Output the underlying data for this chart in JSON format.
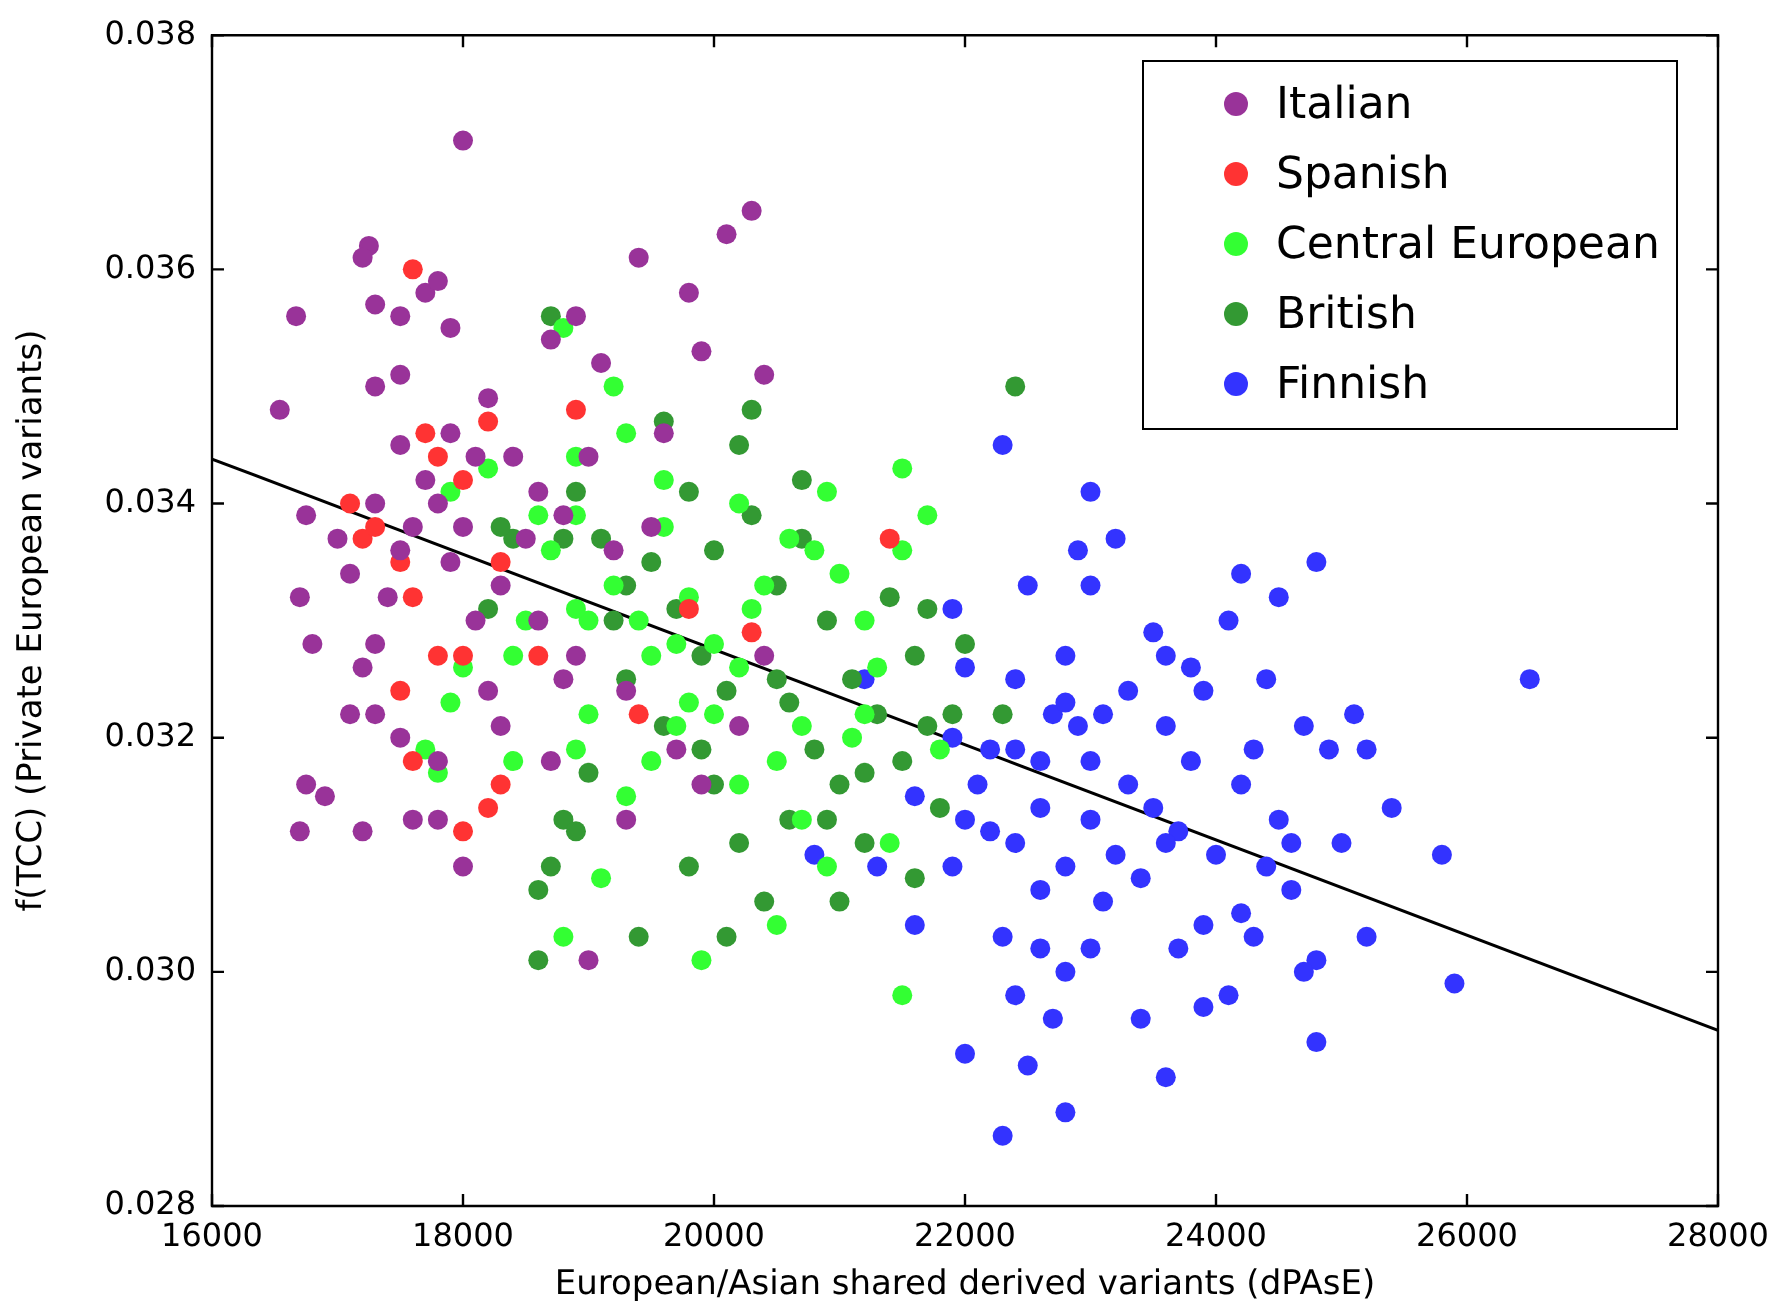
{
  "chart_data": {
    "type": "scatter",
    "xlabel": "European/Asian shared derived variants (dPAsE)",
    "ylabel": "f(TCC) (Private European variants)",
    "xlim": [
      16000,
      28000
    ],
    "xticks": [
      16000,
      18000,
      20000,
      22000,
      24000,
      26000,
      28000
    ],
    "ylim": [
      0.028,
      0.038
    ],
    "yticks": [
      0.028,
      {
        "value": 0.03,
        "label": "0.030"
      },
      0.032,
      0.034,
      0.036,
      0.038
    ],
    "legend": "top right",
    "marker": "circle",
    "series": [
      {
        "name": "Italian",
        "color": "#993399",
        "x": [
          16670,
          16540,
          16750,
          16700,
          16800,
          16750,
          16700,
          16900,
          17000,
          17100,
          17100,
          17250,
          17200,
          17300,
          17500,
          17300,
          17500,
          17700,
          17900,
          17800,
          18000,
          17500,
          17700,
          17800,
          18000,
          17900,
          17600,
          17300,
          17500,
          17400,
          17300,
          17200,
          17300,
          17500,
          17800,
          17600,
          17800,
          18000,
          17200,
          18200,
          18100,
          18300,
          18500,
          18600,
          18400,
          18200,
          18700,
          18900,
          19100,
          19400,
          19800,
          20100,
          20300,
          19900,
          20400,
          19600,
          19000,
          18800,
          19200,
          18600,
          18900,
          19300,
          19700,
          19900,
          19300,
          19000,
          18700,
          18300,
          18800,
          20200,
          20400,
          19500,
          18100,
          17900
        ],
        "values": [
          0.0356,
          0.0348,
          0.0339,
          0.0332,
          0.0328,
          0.0316,
          0.0312,
          0.0315,
          0.0337,
          0.0334,
          0.0322,
          0.0362,
          0.0361,
          0.0357,
          0.0356,
          0.035,
          0.0351,
          0.0358,
          0.0355,
          0.0359,
          0.0371,
          0.0345,
          0.0342,
          0.034,
          0.0338,
          0.0335,
          0.0338,
          0.034,
          0.0336,
          0.0332,
          0.0328,
          0.0326,
          0.0322,
          0.032,
          0.0318,
          0.0313,
          0.0313,
          0.0309,
          0.0312,
          0.0324,
          0.033,
          0.0333,
          0.0337,
          0.0341,
          0.0344,
          0.0349,
          0.0354,
          0.0356,
          0.0352,
          0.0361,
          0.0358,
          0.0363,
          0.0365,
          0.0353,
          0.0351,
          0.0346,
          0.0344,
          0.0339,
          0.0336,
          0.033,
          0.0327,
          0.0324,
          0.0319,
          0.0316,
          0.0313,
          0.0301,
          0.0318,
          0.0321,
          0.0325,
          0.0321,
          0.0327,
          0.0338,
          0.0344,
          0.0346
        ]
      },
      {
        "name": "Spanish",
        "color": "#ff3333",
        "x": [
          17600,
          17700,
          17500,
          17200,
          17100,
          17800,
          18000,
          18200,
          17600,
          17800,
          18000,
          17600,
          17500,
          18300,
          18600,
          18300,
          18000,
          18200,
          18900,
          19400,
          20300,
          21400,
          19800,
          17300
        ],
        "values": [
          0.036,
          0.0346,
          0.0335,
          0.0337,
          0.034,
          0.0344,
          0.0342,
          0.0347,
          0.0332,
          0.0327,
          0.0327,
          0.0318,
          0.0324,
          0.0335,
          0.0327,
          0.0316,
          0.0312,
          0.0314,
          0.0348,
          0.0322,
          0.0329,
          0.0337,
          0.0331,
          0.0338
        ]
      },
      {
        "name": "Central European",
        "color": "#33ff33",
        "x": [
          17900,
          17700,
          17800,
          18000,
          18500,
          18700,
          18800,
          19200,
          18900,
          18600,
          18400,
          18900,
          19000,
          19200,
          19400,
          19600,
          19800,
          20000,
          20200,
          19800,
          19700,
          19500,
          19300,
          19100,
          18800,
          19900,
          20200,
          20500,
          20700,
          20400,
          20200,
          20600,
          20900,
          21000,
          21200,
          21300,
          21100,
          21500,
          21500,
          21700,
          21200,
          20700,
          20900,
          21500,
          21800,
          20500,
          19600,
          19300,
          18900,
          19000,
          19700,
          20000,
          18400,
          17900,
          18200,
          19500,
          20300,
          20800,
          21400,
          18900
        ],
        "values": [
          0.0323,
          0.0319,
          0.0317,
          0.0326,
          0.033,
          0.0336,
          0.0355,
          0.035,
          0.0344,
          0.0339,
          0.0327,
          0.0319,
          0.0322,
          0.0333,
          0.033,
          0.0338,
          0.0332,
          0.0328,
          0.0326,
          0.0323,
          0.0321,
          0.0318,
          0.0315,
          0.0308,
          0.0303,
          0.0301,
          0.0316,
          0.0318,
          0.0321,
          0.0333,
          0.034,
          0.0337,
          0.0341,
          0.0334,
          0.033,
          0.0326,
          0.032,
          0.0343,
          0.0336,
          0.0339,
          0.0322,
          0.0313,
          0.0309,
          0.0298,
          0.0319,
          0.0304,
          0.0342,
          0.0346,
          0.0339,
          0.033,
          0.0328,
          0.0322,
          0.0318,
          0.0341,
          0.0343,
          0.0327,
          0.0331,
          0.0336,
          0.0311,
          0.0331
        ]
      },
      {
        "name": "British",
        "color": "#339933",
        "x": [
          18600,
          18600,
          18700,
          18800,
          19000,
          19300,
          19600,
          19900,
          20200,
          20400,
          20100,
          19400,
          18400,
          18200,
          18700,
          18900,
          19100,
          19300,
          19600,
          19800,
          20000,
          20300,
          20500,
          20700,
          20900,
          21100,
          21300,
          21500,
          21700,
          21900,
          22000,
          21700,
          21600,
          21400,
          21200,
          21000,
          20800,
          20600,
          20500,
          20100,
          19900,
          19700,
          19500,
          20300,
          20200,
          20700,
          21000,
          21600,
          22400,
          21800,
          19200,
          20600,
          20900,
          22300,
          19800,
          18900,
          18800,
          18300,
          20000,
          21200
        ],
        "values": [
          0.0307,
          0.0301,
          0.0309,
          0.0313,
          0.0317,
          0.0325,
          0.0321,
          0.0319,
          0.0311,
          0.0306,
          0.0303,
          0.0303,
          0.0337,
          0.0331,
          0.0356,
          0.0341,
          0.0337,
          0.0333,
          0.0347,
          0.0341,
          0.0336,
          0.0339,
          0.0333,
          0.0337,
          0.033,
          0.0325,
          0.0322,
          0.0318,
          0.0321,
          0.0322,
          0.0328,
          0.0331,
          0.0327,
          0.0332,
          0.0317,
          0.0316,
          0.0319,
          0.0323,
          0.0325,
          0.0324,
          0.0327,
          0.0331,
          0.0335,
          0.0348,
          0.0345,
          0.0342,
          0.0306,
          0.0308,
          0.035,
          0.0314,
          0.033,
          0.0313,
          0.0313,
          0.0322,
          0.0309,
          0.0312,
          0.0337,
          0.0338,
          0.0316,
          0.0311
        ]
      },
      {
        "name": "Finnish",
        "color": "#3333ff",
        "x": [
          22300,
          23000,
          22900,
          23200,
          23000,
          22500,
          22400,
          22700,
          22000,
          21900,
          22200,
          22400,
          22600,
          22800,
          22900,
          23100,
          23300,
          23500,
          23600,
          23800,
          23900,
          24100,
          24200,
          24500,
          24800,
          24400,
          24700,
          24900,
          25100,
          25200,
          25400,
          25800,
          26500,
          25900,
          25200,
          24800,
          24800,
          24700,
          24600,
          24400,
          24200,
          24000,
          23900,
          23700,
          23500,
          23400,
          23200,
          23000,
          22800,
          22600,
          22400,
          22200,
          22000,
          21900,
          22300,
          22400,
          22600,
          22800,
          23000,
          23100,
          23400,
          23600,
          23900,
          24100,
          24300,
          22500,
          22300,
          22800,
          22000,
          22700,
          21600,
          21300,
          21200,
          21600,
          23600,
          23800,
          24200,
          24500,
          23300,
          23000,
          22600,
          22100,
          23700,
          24600,
          25000,
          20800,
          21900,
          24300,
          23600,
          22800
        ],
        "values": [
          0.0345,
          0.0341,
          0.0336,
          0.0337,
          0.0333,
          0.0333,
          0.0325,
          0.0322,
          0.0326,
          0.032,
          0.0319,
          0.0319,
          0.0318,
          0.0323,
          0.0321,
          0.0322,
          0.0324,
          0.0329,
          0.0327,
          0.0326,
          0.0324,
          0.033,
          0.0334,
          0.0332,
          0.0335,
          0.0325,
          0.0321,
          0.0319,
          0.0322,
          0.0319,
          0.0314,
          0.031,
          0.0325,
          0.0299,
          0.0303,
          0.0301,
          0.0294,
          0.03,
          0.0307,
          0.0309,
          0.0305,
          0.031,
          0.0304,
          0.0312,
          0.0314,
          0.0308,
          0.031,
          0.0313,
          0.0309,
          0.0307,
          0.0311,
          0.0312,
          0.0313,
          0.0309,
          0.0303,
          0.0298,
          0.0302,
          0.03,
          0.0302,
          0.0306,
          0.0296,
          0.0291,
          0.0297,
          0.0298,
          0.0303,
          0.0292,
          0.0286,
          0.0288,
          0.0293,
          0.0296,
          0.0304,
          0.0309,
          0.0325,
          0.0315,
          0.0311,
          0.0318,
          0.0316,
          0.0313,
          0.0316,
          0.0318,
          0.0314,
          0.0316,
          0.0302,
          0.0311,
          0.0311,
          0.031,
          0.0331,
          0.0319,
          0.0321,
          0.0327
        ]
      },
      {
        "type": "line",
        "color": "#000000",
        "marker": "none",
        "x": [
          16000,
          28000
        ],
        "values": [
          0.03438,
          0.0295
        ]
      }
    ]
  }
}
